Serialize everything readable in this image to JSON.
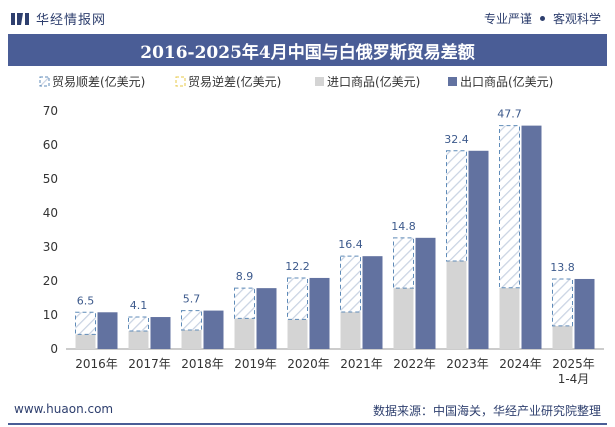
{
  "header": {
    "brand_name": "华经情报网",
    "tag_left": "专业严谨",
    "tag_right": "客观科学"
  },
  "title": "2016-2025年4月中国与白俄罗斯贸易差额",
  "footer": {
    "website": "www.huaon.com",
    "source": "数据来源：中国海关，华经产业研究院整理"
  },
  "colors": {
    "brand": "#4a5d96",
    "import": "#d4d4d4",
    "export": "#6272a0",
    "surplus_border": "#5f8bb8",
    "deficit_border": "#e7c84a",
    "value_label": "#3d5a8c"
  },
  "chart_data": {
    "type": "bar",
    "categories": [
      "2016年",
      "2017年",
      "2018年",
      "2019年",
      "2020年",
      "2021年",
      "2022年",
      "2023年",
      "2024年",
      "2025年\n1-4月"
    ],
    "series": [
      {
        "name": "贸易顺差(亿美元)",
        "values": [
          6.5,
          4.1,
          5.7,
          8.9,
          12.2,
          16.4,
          14.8,
          32.4,
          47.7,
          13.8
        ]
      },
      {
        "name": "贸易逆差(亿美元)",
        "values": [
          0,
          0,
          0,
          0,
          0,
          0,
          0,
          0,
          0,
          0
        ]
      },
      {
        "name": "进口商品(亿美元)",
        "values": [
          4.3,
          5.3,
          5.6,
          9.0,
          8.7,
          10.9,
          17.9,
          25.9,
          18.0,
          6.8
        ]
      },
      {
        "name": "出口商品(亿美元)",
        "values": [
          10.8,
          9.4,
          11.3,
          17.9,
          20.9,
          27.3,
          32.7,
          58.3,
          65.7,
          20.6
        ]
      }
    ],
    "ylim": [
      0,
      70
    ],
    "yticks": [
      0,
      10,
      20,
      30,
      40,
      50,
      60,
      70
    ],
    "legend_position": "top",
    "grid": false
  }
}
